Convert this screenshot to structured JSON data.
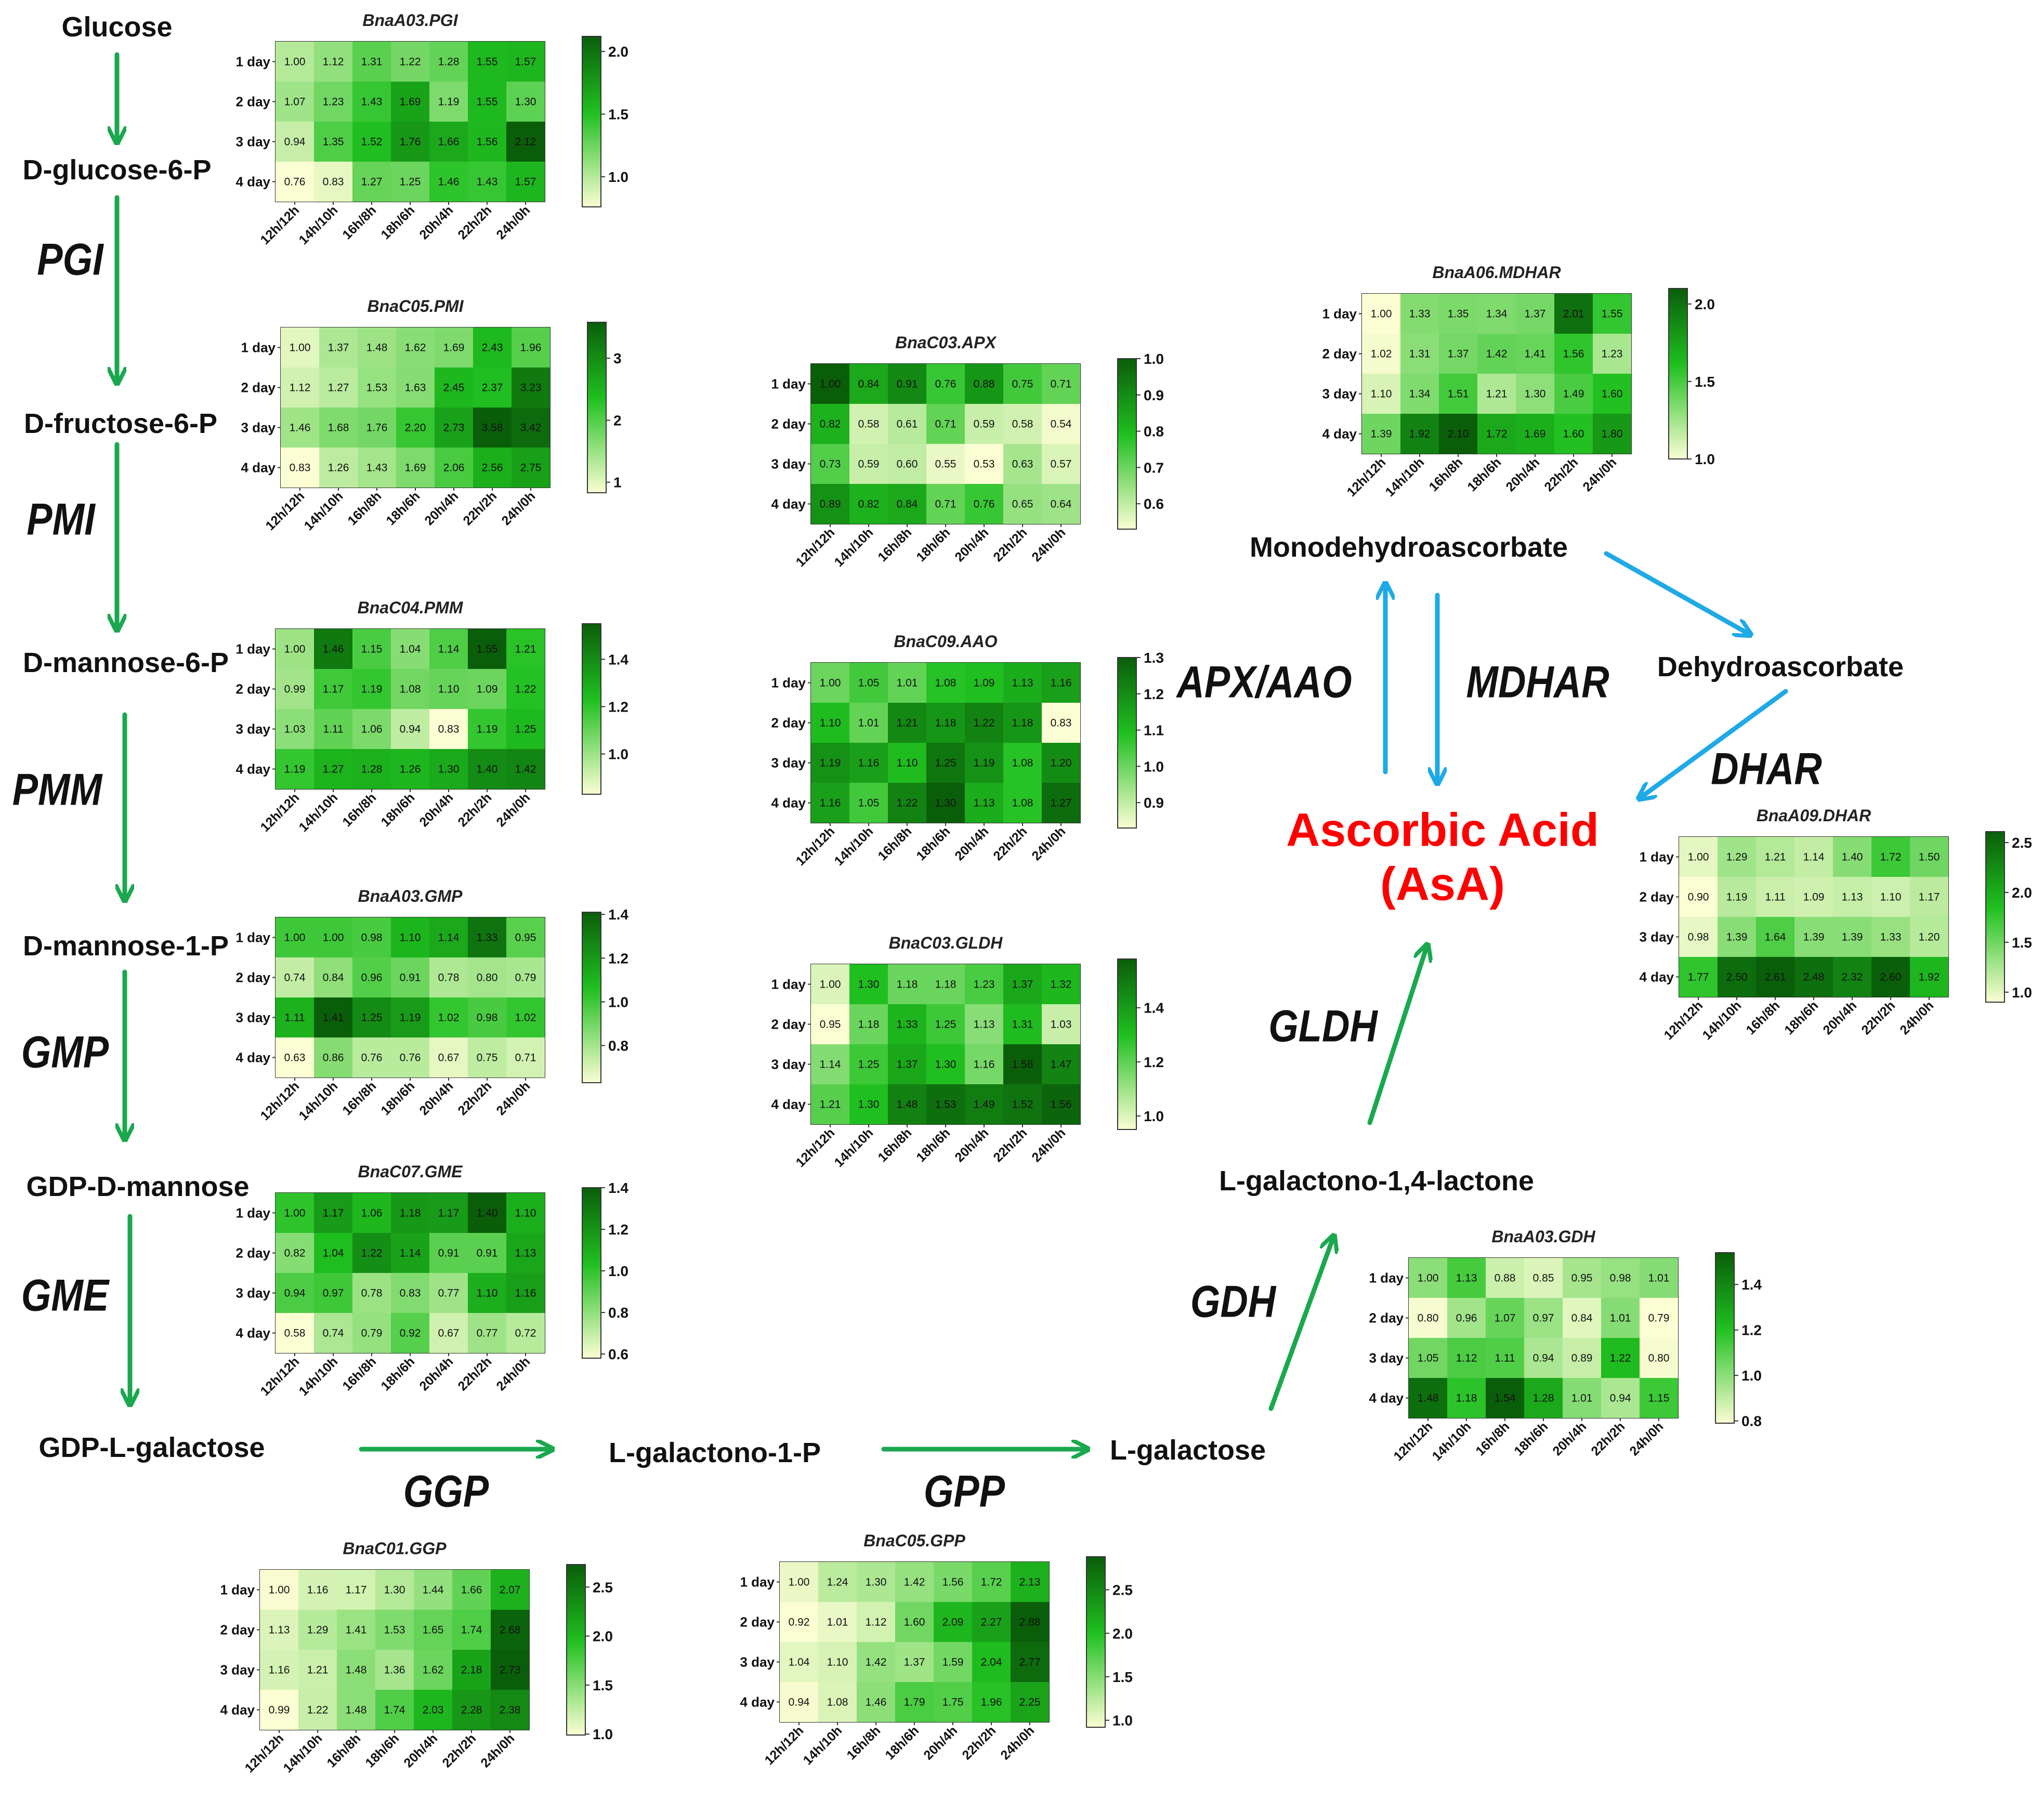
{
  "colors": {
    "pathway_arrow": "#1aa84e",
    "cycle_arrow": "#1fa9e6",
    "product_text": "#ff0000",
    "heat_low": "#fbfdd3",
    "heat_mid": "#20c020",
    "heat_high": "#0a5e0a"
  },
  "metabolites": {
    "glucose": "Glucose",
    "d_glucose_6_p": "D-glucose-6-P",
    "d_fructose_6_p": "D-fructose-6-P",
    "d_mannose_6_p": "D-mannose-6-P",
    "d_mannose_1_p": "D-mannose-1-P",
    "gdp_d_mannose": "GDP-D-mannose",
    "gdp_l_galactose": "GDP-L-galactose",
    "l_galactono_1_p": "L-galactono-1-P",
    "l_galactose": "L-galactose",
    "l_galactono_lactone": "L-galactono-1,4-lactone",
    "monodehydroascorbate": "Monodehydroascorbate",
    "dehydroascorbate": "Dehydroascorbate"
  },
  "product": {
    "line1": "Ascorbic Acid",
    "line2": "(AsA)"
  },
  "enzymes": {
    "pgi": "PGI",
    "pmi": "PMI",
    "pmm": "PMM",
    "gmp": "GMP",
    "gme": "GME",
    "ggp": "GGP",
    "gpp": "GPP",
    "gdh": "GDH",
    "gldh": "GLDH",
    "apx_aao": "APX/AAO",
    "mdhar": "MDHAR",
    "dhar": "DHAR"
  },
  "chart_data": [
    {
      "type": "heatmap",
      "title": "BnaA03.PGI",
      "rows": [
        "1 day",
        "2 day",
        "3 day",
        "4 day"
      ],
      "columns": [
        "12h/12h",
        "14h/10h",
        "16h/8h",
        "18h/6h",
        "20h/4h",
        "22h/2h",
        "24h/0h"
      ],
      "values": [
        [
          1.0,
          1.12,
          1.31,
          1.22,
          1.28,
          1.55,
          1.57
        ],
        [
          1.07,
          1.23,
          1.43,
          1.69,
          1.19,
          1.55,
          1.3
        ],
        [
          0.94,
          1.35,
          1.52,
          1.76,
          1.66,
          1.56,
          2.12
        ],
        [
          0.76,
          0.83,
          1.27,
          1.25,
          1.46,
          1.43,
          1.57
        ]
      ],
      "scale_range": [
        0.76,
        2.12
      ],
      "scale_ticks": [
        1.0,
        1.5,
        2.0
      ],
      "scale_labels": [
        "1.0",
        "1.5",
        "2.0"
      ]
    },
    {
      "type": "heatmap",
      "title": "BnaC05.PMI",
      "rows": [
        "1 day",
        "2 day",
        "3 day",
        "4 day"
      ],
      "columns": [
        "12h/12h",
        "14h/10h",
        "16h/8h",
        "18h/6h",
        "20h/4h",
        "22h/2h",
        "24h/0h"
      ],
      "values": [
        [
          1.0,
          1.37,
          1.48,
          1.62,
          1.69,
          2.43,
          1.96
        ],
        [
          1.12,
          1.27,
          1.53,
          1.63,
          2.45,
          2.37,
          3.23
        ],
        [
          1.46,
          1.68,
          1.76,
          2.2,
          2.73,
          3.58,
          3.42
        ],
        [
          0.83,
          1.26,
          1.43,
          1.69,
          2.06,
          2.56,
          2.75
        ]
      ],
      "scale_range": [
        0.83,
        3.58
      ],
      "scale_ticks": [
        1,
        2,
        3
      ],
      "scale_labels": [
        "1",
        "2",
        "3"
      ]
    },
    {
      "type": "heatmap",
      "title": "BnaC04.PMM",
      "rows": [
        "1 day",
        "2 day",
        "3 day",
        "4 day"
      ],
      "columns": [
        "12h/12h",
        "14h/10h",
        "16h/8h",
        "18h/6h",
        "20h/4h",
        "22h/2h",
        "24h/0h"
      ],
      "values": [
        [
          1.0,
          1.46,
          1.15,
          1.04,
          1.14,
          1.55,
          1.21
        ],
        [
          0.99,
          1.17,
          1.19,
          1.08,
          1.1,
          1.09,
          1.22
        ],
        [
          1.03,
          1.11,
          1.06,
          0.94,
          0.83,
          1.19,
          1.25
        ],
        [
          1.19,
          1.27,
          1.28,
          1.26,
          1.3,
          1.4,
          1.42
        ]
      ],
      "scale_range": [
        0.83,
        1.55
      ],
      "scale_ticks": [
        1.0,
        1.2,
        1.4
      ],
      "scale_labels": [
        "1.0",
        "1.2",
        "1.4"
      ]
    },
    {
      "type": "heatmap",
      "title": "BnaA03.GMP",
      "rows": [
        "1 day",
        "2 day",
        "3 day",
        "4 day"
      ],
      "columns": [
        "12h/12h",
        "14h/10h",
        "16h/8h",
        "18h/6h",
        "20h/4h",
        "22h/2h",
        "24h/0h"
      ],
      "values": [
        [
          1.0,
          1.0,
          0.98,
          1.1,
          1.14,
          1.33,
          0.95
        ],
        [
          0.74,
          0.84,
          0.96,
          0.91,
          0.78,
          0.8,
          0.79
        ],
        [
          1.11,
          1.41,
          1.25,
          1.19,
          1.02,
          0.98,
          1.02
        ],
        [
          0.63,
          0.86,
          0.76,
          0.76,
          0.67,
          0.75,
          0.71
        ]
      ],
      "scale_range": [
        0.63,
        1.41
      ],
      "scale_ticks": [
        0.8,
        1.0,
        1.2,
        1.4
      ],
      "scale_labels": [
        "0.8",
        "1.0",
        "1.2",
        "1.4"
      ]
    },
    {
      "type": "heatmap",
      "title": "BnaC07.GME",
      "rows": [
        "1 day",
        "2 day",
        "3 day",
        "4 day"
      ],
      "columns": [
        "12h/12h",
        "14h/10h",
        "16h/8h",
        "18h/6h",
        "20h/4h",
        "22h/2h",
        "24h/0h"
      ],
      "values": [
        [
          1.0,
          1.17,
          1.06,
          1.18,
          1.17,
          1.4,
          1.1
        ],
        [
          0.82,
          1.04,
          1.22,
          1.14,
          0.91,
          0.91,
          1.13
        ],
        [
          0.94,
          0.97,
          0.78,
          0.83,
          0.77,
          1.1,
          1.16
        ],
        [
          0.58,
          0.74,
          0.79,
          0.92,
          0.67,
          0.77,
          0.72
        ]
      ],
      "scale_range": [
        0.58,
        1.4
      ],
      "scale_ticks": [
        0.6,
        0.8,
        1.0,
        1.2,
        1.4
      ],
      "scale_labels": [
        "0.6",
        "0.8",
        "1.0",
        "1.2",
        "1.4"
      ]
    },
    {
      "type": "heatmap",
      "title": "BnaC01.GGP",
      "rows": [
        "1 day",
        "2 day",
        "3 day",
        "4 day"
      ],
      "columns": [
        "12h/12h",
        "14h/10h",
        "16h/8h",
        "18h/6h",
        "20h/4h",
        "22h/2h",
        "24h/0h"
      ],
      "values": [
        [
          1.0,
          1.16,
          1.17,
          1.3,
          1.44,
          1.66,
          2.07
        ],
        [
          1.13,
          1.29,
          1.41,
          1.53,
          1.65,
          1.74,
          2.68
        ],
        [
          1.16,
          1.21,
          1.48,
          1.36,
          1.62,
          2.18,
          2.73
        ],
        [
          0.99,
          1.22,
          1.48,
          1.74,
          2.03,
          2.28,
          2.38
        ]
      ],
      "scale_range": [
        0.99,
        2.73
      ],
      "scale_ticks": [
        1.0,
        1.5,
        2.0,
        2.5
      ],
      "scale_labels": [
        "1.0",
        "1.5",
        "2.0",
        "2.5"
      ]
    },
    {
      "type": "heatmap",
      "title": "BnaC05.GPP",
      "rows": [
        "1 day",
        "2 day",
        "3 day",
        "4 day"
      ],
      "columns": [
        "12h/12h",
        "14h/10h",
        "16h/8h",
        "18h/6h",
        "20h/4h",
        "22h/2h",
        "24h/0h"
      ],
      "values": [
        [
          1.0,
          1.24,
          1.3,
          1.42,
          1.56,
          1.72,
          2.13
        ],
        [
          0.92,
          1.01,
          1.12,
          1.6,
          2.09,
          2.27,
          2.88
        ],
        [
          1.04,
          1.1,
          1.42,
          1.37,
          1.59,
          2.04,
          2.77
        ],
        [
          0.94,
          1.08,
          1.46,
          1.79,
          1.75,
          1.96,
          2.25
        ]
      ],
      "scale_range": [
        0.92,
        2.88
      ],
      "scale_ticks": [
        1.0,
        1.5,
        2.0,
        2.5
      ],
      "scale_labels": [
        "1.0",
        "1.5",
        "2.0",
        "2.5"
      ]
    },
    {
      "type": "heatmap",
      "title": "BnaC03.APX",
      "rows": [
        "1 day",
        "2 day",
        "3 day",
        "4 day"
      ],
      "columns": [
        "12h/12h",
        "14h/10h",
        "16h/8h",
        "18h/6h",
        "20h/4h",
        "22h/2h",
        "24h/0h"
      ],
      "values": [
        [
          1.0,
          0.84,
          0.91,
          0.76,
          0.88,
          0.75,
          0.71
        ],
        [
          0.82,
          0.58,
          0.61,
          0.71,
          0.59,
          0.58,
          0.54
        ],
        [
          0.73,
          0.59,
          0.6,
          0.55,
          0.53,
          0.63,
          0.57
        ],
        [
          0.89,
          0.82,
          0.84,
          0.71,
          0.76,
          0.65,
          0.64
        ]
      ],
      "scale_range": [
        0.53,
        1.0
      ],
      "scale_ticks": [
        0.6,
        0.7,
        0.8,
        0.9,
        1.0
      ],
      "scale_labels": [
        "0.6",
        "0.7",
        "0.8",
        "0.9",
        "1.0"
      ]
    },
    {
      "type": "heatmap",
      "title": "BnaC09.AAO",
      "rows": [
        "1 day",
        "2 day",
        "3 day",
        "4 day"
      ],
      "columns": [
        "12h/12h",
        "14h/10h",
        "16h/8h",
        "18h/6h",
        "20h/4h",
        "22h/2h",
        "24h/0h"
      ],
      "values": [
        [
          1.0,
          1.05,
          1.01,
          1.08,
          1.09,
          1.13,
          1.16
        ],
        [
          1.1,
          1.01,
          1.21,
          1.18,
          1.22,
          1.18,
          0.83
        ],
        [
          1.19,
          1.16,
          1.1,
          1.25,
          1.19,
          1.08,
          1.2
        ],
        [
          1.16,
          1.05,
          1.22,
          1.3,
          1.13,
          1.08,
          1.27
        ]
      ],
      "scale_range": [
        0.83,
        1.3
      ],
      "scale_ticks": [
        0.9,
        1.0,
        1.1,
        1.2,
        1.3
      ],
      "scale_labels": [
        "0.9",
        "1.0",
        "1.1",
        "1.2",
        "1.3"
      ]
    },
    {
      "type": "heatmap",
      "title": "BnaC03.GLDH",
      "rows": [
        "1 day",
        "2 day",
        "3 day",
        "4 day"
      ],
      "columns": [
        "12h/12h",
        "14h/10h",
        "16h/8h",
        "18h/6h",
        "20h/4h",
        "22h/2h",
        "24h/0h"
      ],
      "values": [
        [
          1.0,
          1.3,
          1.18,
          1.18,
          1.23,
          1.37,
          1.32
        ],
        [
          0.95,
          1.18,
          1.33,
          1.25,
          1.13,
          1.31,
          1.03
        ],
        [
          1.14,
          1.25,
          1.37,
          1.3,
          1.16,
          1.58,
          1.47
        ],
        [
          1.21,
          1.3,
          1.48,
          1.53,
          1.49,
          1.52,
          1.56
        ]
      ],
      "scale_range": [
        0.95,
        1.58
      ],
      "scale_ticks": [
        1.0,
        1.2,
        1.4
      ],
      "scale_labels": [
        "1.0",
        "1.2",
        "1.4"
      ]
    },
    {
      "type": "heatmap",
      "title": "BnaA06.MDHAR",
      "rows": [
        "1 day",
        "2 day",
        "3 day",
        "4 day"
      ],
      "columns": [
        "12h/12h",
        "14h/10h",
        "16h/8h",
        "18h/6h",
        "20h/4h",
        "22h/2h",
        "24h/0h"
      ],
      "values": [
        [
          1.0,
          1.33,
          1.35,
          1.34,
          1.37,
          2.01,
          1.55
        ],
        [
          1.02,
          1.31,
          1.37,
          1.42,
          1.41,
          1.56,
          1.23
        ],
        [
          1.1,
          1.34,
          1.51,
          1.21,
          1.3,
          1.49,
          1.6
        ],
        [
          1.39,
          1.92,
          2.1,
          1.72,
          1.69,
          1.6,
          1.8
        ]
      ],
      "scale_range": [
        1.0,
        2.1
      ],
      "scale_ticks": [
        1.0,
        1.5,
        2.0
      ],
      "scale_labels": [
        "1.0",
        "1.5",
        "2.0"
      ]
    },
    {
      "type": "heatmap",
      "title": "BnaA09.DHAR",
      "rows": [
        "1 day",
        "2 day",
        "3 day",
        "4 day"
      ],
      "columns": [
        "12h/12h",
        "14h/10h",
        "16h/8h",
        "18h/6h",
        "20h/4h",
        "22h/2h",
        "24h/0h"
      ],
      "values": [
        [
          1.0,
          1.29,
          1.21,
          1.14,
          1.4,
          1.72,
          1.5
        ],
        [
          0.9,
          1.19,
          1.11,
          1.09,
          1.13,
          1.1,
          1.17
        ],
        [
          0.98,
          1.39,
          1.64,
          1.39,
          1.39,
          1.33,
          1.2
        ],
        [
          1.77,
          2.5,
          2.61,
          2.48,
          2.32,
          2.6,
          1.92
        ]
      ],
      "scale_range": [
        0.9,
        2.61
      ],
      "scale_ticks": [
        1.0,
        1.5,
        2.0,
        2.5
      ],
      "scale_labels": [
        "1.0",
        "1.5",
        "2.0",
        "2.5"
      ]
    },
    {
      "type": "heatmap",
      "title": "BnaA03.GDH",
      "rows": [
        "1 day",
        "2 day",
        "3 day",
        "4 day"
      ],
      "columns": [
        "12h/12h",
        "14h/10h",
        "16h/8h",
        "18h/6h",
        "20h/4h",
        "22h/2h",
        "24h/0h"
      ],
      "values": [
        [
          1.0,
          1.13,
          0.88,
          0.85,
          0.95,
          0.98,
          1.01
        ],
        [
          0.8,
          0.96,
          1.07,
          0.97,
          0.84,
          1.01,
          0.79
        ],
        [
          1.05,
          1.12,
          1.11,
          0.94,
          0.89,
          1.22,
          0.8
        ],
        [
          1.48,
          1.18,
          1.54,
          1.28,
          1.01,
          0.94,
          1.15
        ]
      ],
      "scale_range": [
        0.79,
        1.54
      ],
      "scale_ticks": [
        0.8,
        1.0,
        1.2,
        1.4
      ],
      "scale_labels": [
        "0.8",
        "1.0",
        "1.2",
        "1.4"
      ]
    }
  ]
}
